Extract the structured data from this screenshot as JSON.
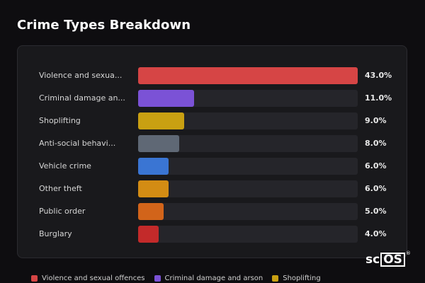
{
  "title": "Crime Types Breakdown",
  "chart_data": {
    "type": "bar",
    "orientation": "horizontal",
    "categories": [
      "Violence and sexual offences",
      "Criminal damage and arson",
      "Shoplifting",
      "Anti-social behaviour",
      "Vehicle crime",
      "Other theft",
      "Public order",
      "Burglary"
    ],
    "display_labels": [
      "Violence and sexua...",
      "Criminal damage an...",
      "Shoplifting",
      "Anti-social behavi...",
      "Vehicle crime",
      "Other theft",
      "Public order",
      "Burglary"
    ],
    "values": [
      43.0,
      11.0,
      9.0,
      8.0,
      6.0,
      6.0,
      5.0,
      4.0
    ],
    "value_labels": [
      "43.0%",
      "11.0%",
      "9.0%",
      "8.0%",
      "6.0%",
      "6.0%",
      "5.0%",
      "4.0%"
    ],
    "colors": [
      "#d64545",
      "#7b52d6",
      "#c9a012",
      "#5f6875",
      "#3a75d3",
      "#d38c14",
      "#d2641a",
      "#c32a2a"
    ],
    "xlim": [
      0,
      43
    ],
    "grid": false
  },
  "legend": {
    "items": [
      {
        "label": "Violence and sexual offences",
        "color": "#d64545"
      },
      {
        "label": "Criminal damage and arson",
        "color": "#7b52d6"
      },
      {
        "label": "Shoplifting",
        "color": "#c9a012"
      }
    ]
  },
  "logo": {
    "left": "sc",
    "right": "OS",
    "mark": "®"
  }
}
